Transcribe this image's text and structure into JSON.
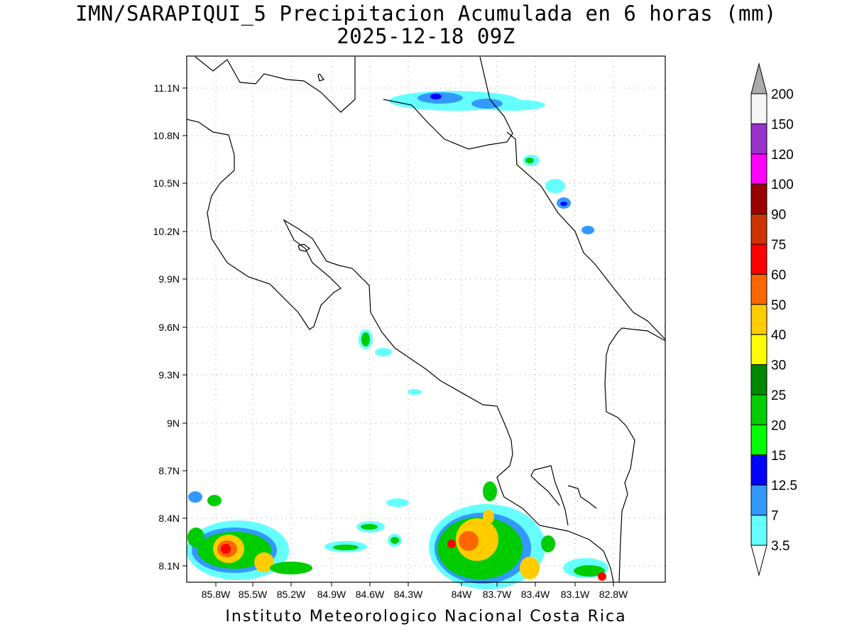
{
  "title": {
    "line1": "IMN/SARAPIQUI_5 Precipitacion Acumulada en 6 horas (mm)",
    "line2": "2025-12-18 09Z"
  },
  "footer": "Instituto Meteorologico Nacional Costa Rica",
  "map": {
    "lat_labels": [
      "11.1N",
      "10.8N",
      "10.5N",
      "10.2N",
      "9.9N",
      "9.6N",
      "9.3N",
      "9N",
      "8.7N",
      "8.4N",
      "8.1N"
    ],
    "lon_labels": [
      "85.8W",
      "85.5W",
      "85.2W",
      "84.9W",
      "84.6W",
      "84.3W",
      "84W",
      "83.7W",
      "83.4W",
      "83.1W",
      "82.8W"
    ],
    "grid": "dotted"
  },
  "colorbar": {
    "labels": [
      "3.5",
      "7",
      "12.5",
      "15",
      "20",
      "25",
      "30",
      "40",
      "50",
      "60",
      "75",
      "90",
      "100",
      "120",
      "150",
      "200"
    ],
    "colors": [
      "#ffffff",
      "#66ffff",
      "#3399ff",
      "#0000ff",
      "#00ff00",
      "#00cc00",
      "#008800",
      "#ffff00",
      "#ffcc00",
      "#ff6600",
      "#ff0000",
      "#cc3300",
      "#990000",
      "#ff00ff",
      "#9933cc",
      "#f5f5f5"
    ],
    "tip_color": "#aaaaaa"
  }
}
